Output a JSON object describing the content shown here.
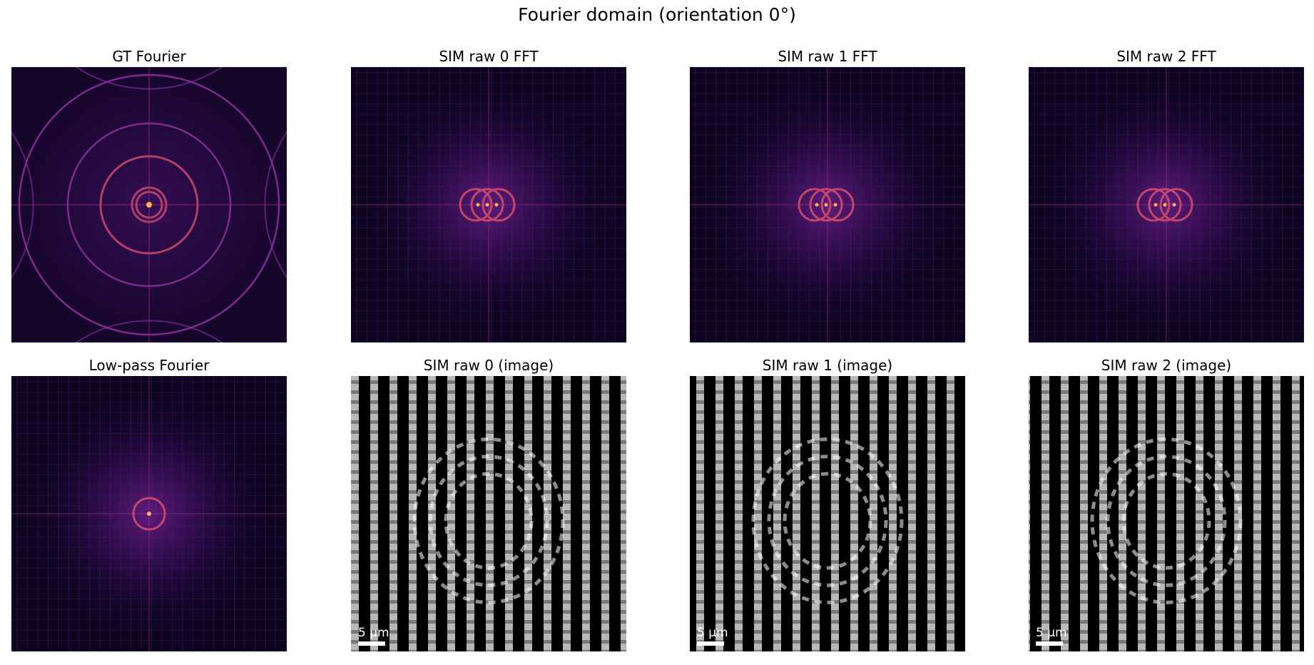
{
  "figure_title": "Fourier domain (orientation 0°)",
  "panels": [
    {
      "title": "GT Fourier",
      "kind": "gt-fourier",
      "scalebar": ""
    },
    {
      "title": "SIM raw 0 FFT",
      "kind": "sim-fft",
      "scalebar": ""
    },
    {
      "title": "SIM raw 1 FFT",
      "kind": "sim-fft",
      "scalebar": ""
    },
    {
      "title": "SIM raw 2 FFT",
      "kind": "sim-fft",
      "scalebar": ""
    },
    {
      "title": "Low-pass Fourier",
      "kind": "lowpass-fourier",
      "scalebar": ""
    },
    {
      "title": "SIM raw 0 (image)",
      "kind": "sim-image",
      "scalebar": "5 µm",
      "phase": 0
    },
    {
      "title": "SIM raw 1 (image)",
      "kind": "sim-image",
      "scalebar": "5 µm",
      "phase": 0.333
    },
    {
      "title": "SIM raw 2 (image)",
      "kind": "sim-image",
      "scalebar": "5 µm",
      "phase": 0.667
    }
  ],
  "colors": {
    "fourier_background": "#0d0520",
    "fourier_ring": "#c2456a",
    "fourier_glow": "#6e1f8c",
    "fourier_center": "#ffb347",
    "image_background": "#000000",
    "image_stripe": "#d8d8d8"
  }
}
